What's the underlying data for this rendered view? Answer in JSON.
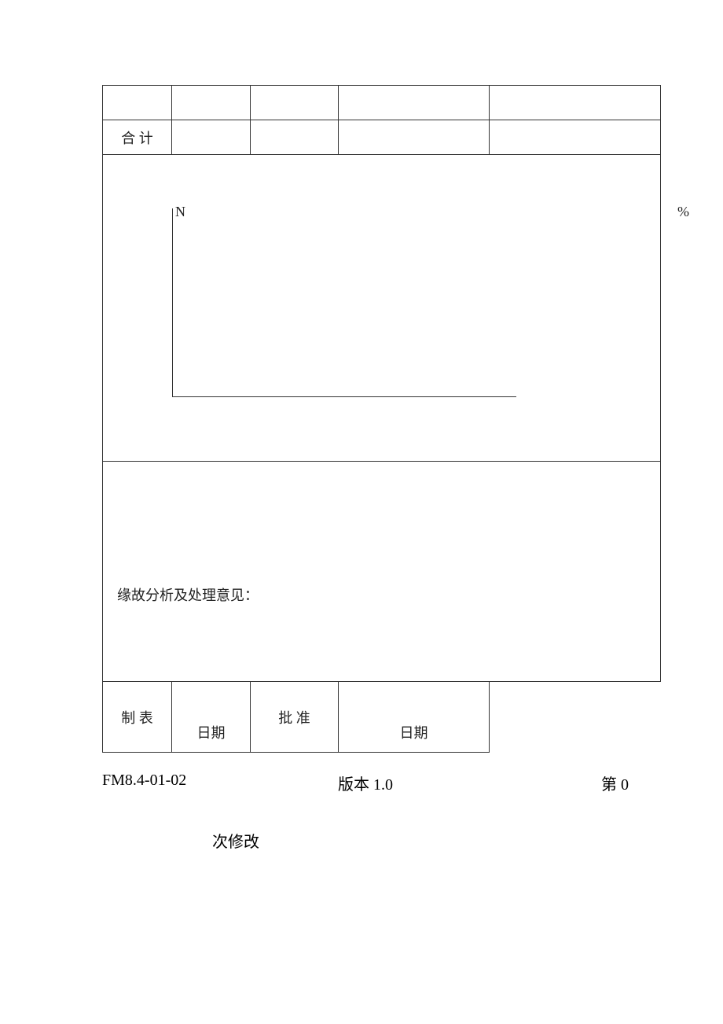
{
  "table": {
    "row2": {
      "label": "合  计"
    },
    "chart": {
      "type": "bar",
      "y_axis_label": "N",
      "secondary_label": "%",
      "axis_color": "#333333",
      "background_color": "#ffffff"
    },
    "analysis": {
      "label": "缘故分析及处理意见："
    },
    "signatures": {
      "prepared_label": "制  表",
      "prepared_date_label": "日期",
      "approved_label": "批  准",
      "approved_date_label": "日期"
    }
  },
  "footer": {
    "form_no": "FM8.4-01-02",
    "version": "版本 1.0",
    "revision_prefix": "第 0",
    "revision_suffix": "次修改"
  },
  "colors": {
    "border": "#333333",
    "text": "#222222",
    "background": "#ffffff"
  }
}
